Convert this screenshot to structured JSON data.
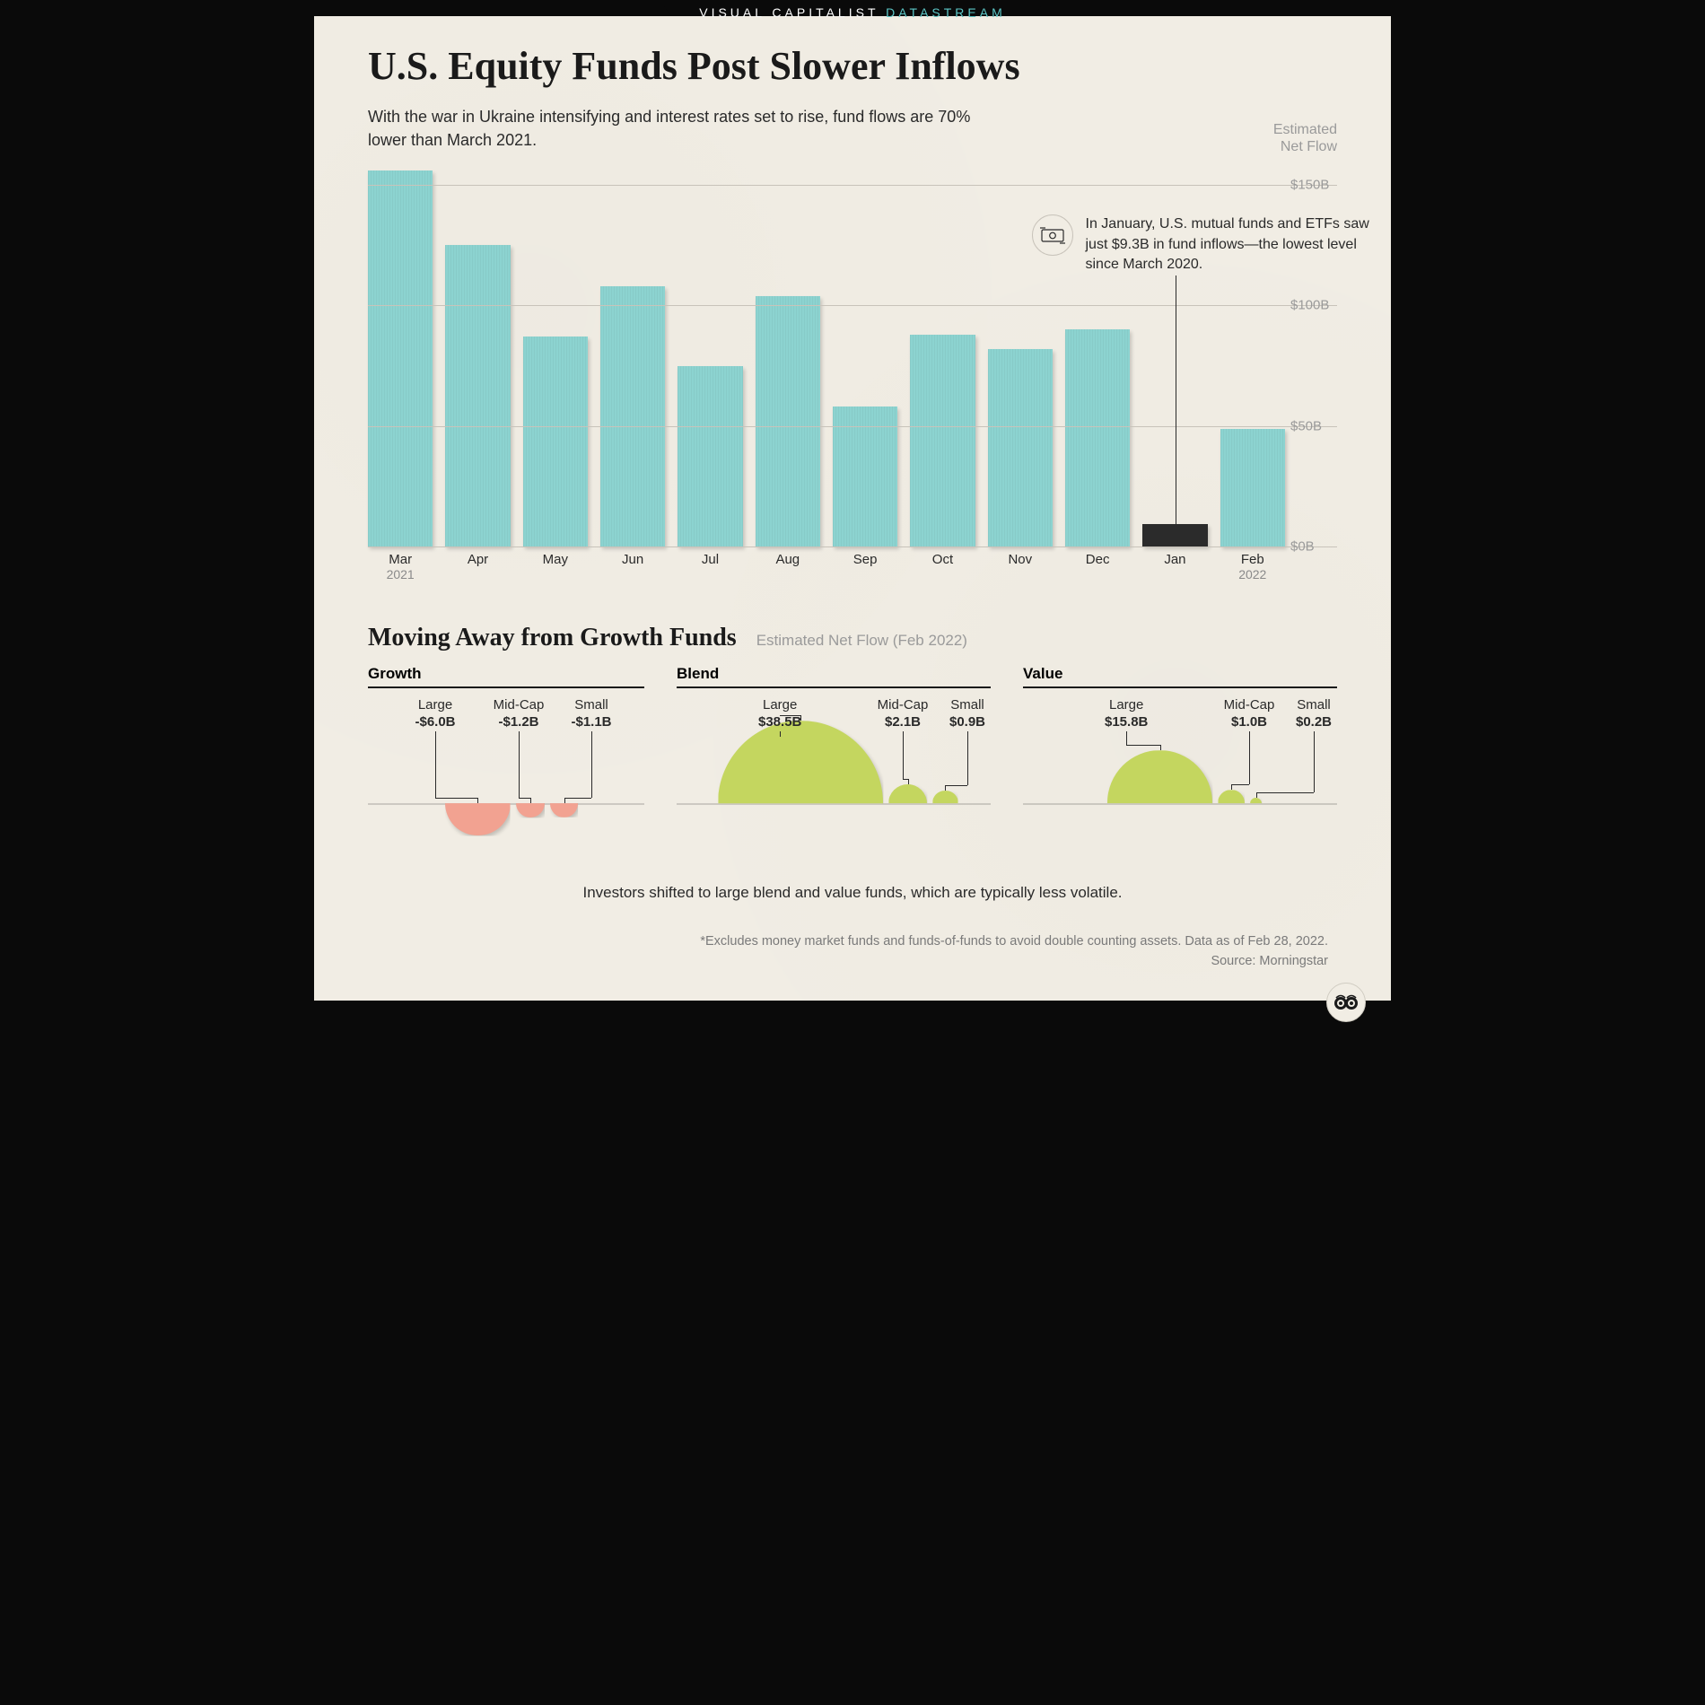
{
  "brand": {
    "left": "VISUAL CAPITALIST",
    "right": "DATASTREAM"
  },
  "title": "U.S. Equity Funds Post Slower Inflows",
  "subtitle": "With the war in Ukraine intensifying and interest rates set to rise, fund flows are 70% lower than March 2021.",
  "bar_chart": {
    "type": "bar",
    "y_axis_label": "Estimated\nNet Flow",
    "ylim": [
      0,
      160
    ],
    "gridlines": [
      {
        "value": 0,
        "label": "$0B"
      },
      {
        "value": 50,
        "label": "$50B"
      },
      {
        "value": 100,
        "label": "$100B"
      },
      {
        "value": 150,
        "label": "$150B"
      }
    ],
    "bar_color": "#8cd3d0",
    "highlight_color": "#2b2b2b",
    "background_color": "#f1ede4",
    "grid_color": "#c8c3ba",
    "bars": [
      {
        "label": "Mar",
        "year": "2021",
        "value": 156
      },
      {
        "label": "Apr",
        "value": 125
      },
      {
        "label": "May",
        "value": 87
      },
      {
        "label": "Jun",
        "value": 108
      },
      {
        "label": "Jul",
        "value": 75
      },
      {
        "label": "Aug",
        "value": 104
      },
      {
        "label": "Sep",
        "value": 58
      },
      {
        "label": "Oct",
        "value": 88
      },
      {
        "label": "Nov",
        "value": 82
      },
      {
        "label": "Dec",
        "value": 90
      },
      {
        "label": "Jan",
        "value": 9.3,
        "highlight": true
      },
      {
        "label": "Feb",
        "year": "2022",
        "value": 49
      }
    ],
    "callout": {
      "text": "In January, U.S. mutual funds and ETFs saw just $9.3B in fund inflows—the lowest level since March 2020.",
      "target_index": 10
    }
  },
  "section2": {
    "title": "Moving Away from Growth Funds",
    "subtitle": "Estimated Net Flow (Feb 2022)",
    "caption": "Investors shifted to large blend and value funds, which are typically less volatile.",
    "positive_color": "#c4d65f",
    "negative_color": "#f2a291",
    "scale_max_value": 38.5,
    "scale_max_radius_px": 92,
    "groups": [
      {
        "name": "Growth",
        "items": [
          {
            "label": "Large",
            "value": -6.0,
            "display": "-$6.0B"
          },
          {
            "label": "Mid-Cap",
            "value": -1.2,
            "display": "-$1.2B"
          },
          {
            "label": "Small",
            "value": -1.1,
            "display": "-$1.1B"
          }
        ]
      },
      {
        "name": "Blend",
        "items": [
          {
            "label": "Large",
            "value": 38.5,
            "display": "$38.5B"
          },
          {
            "label": "Mid-Cap",
            "value": 2.1,
            "display": "$2.1B"
          },
          {
            "label": "Small",
            "value": 0.9,
            "display": "$0.9B"
          }
        ]
      },
      {
        "name": "Value",
        "items": [
          {
            "label": "Large",
            "value": 15.8,
            "display": "$15.8B"
          },
          {
            "label": "Mid-Cap",
            "value": 1.0,
            "display": "$1.0B"
          },
          {
            "label": "Small",
            "value": 0.2,
            "display": "$0.2B"
          }
        ]
      }
    ]
  },
  "footnote_line1": "*Excludes money market funds and funds-of-funds to avoid double counting assets. Data as of Feb 28, 2022.",
  "footnote_line2": "Source: Morningstar"
}
